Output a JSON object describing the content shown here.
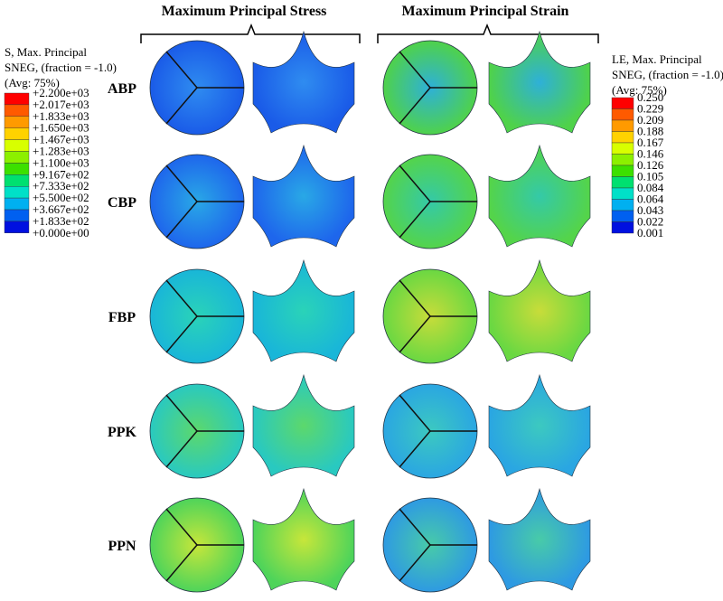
{
  "headers": {
    "stress": "Maximum Principal Stress",
    "strain": "Maximum Principal Strain"
  },
  "legend_stress": {
    "title_lines": [
      "S, Max. Principal",
      "SNEG, (fraction = -1.0)",
      "(Avg: 75%)"
    ],
    "labels": [
      "+2.200e+03",
      "+2.017e+03",
      "+1.833e+03",
      "+1.650e+03",
      "+1.467e+03",
      "+1.283e+03",
      "+1.100e+03",
      "+9.167e+02",
      "+7.333e+02",
      "+5.500e+02",
      "+3.667e+02",
      "+1.833e+02",
      "+0.000e+00"
    ]
  },
  "legend_strain": {
    "title_lines": [
      "LE, Max. Principal",
      "SNEG, (fraction = -1.0)",
      "(Avg: 75%)"
    ],
    "labels": [
      "0.250",
      "0.229",
      "0.209",
      "0.188",
      "0.167",
      "0.146",
      "0.126",
      "0.105",
      "0.084",
      "0.064",
      "0.043",
      "0.022",
      "0.001"
    ]
  },
  "rows": [
    "ABP",
    "CBP",
    "FBP",
    "PPK",
    "PPN"
  ]
}
